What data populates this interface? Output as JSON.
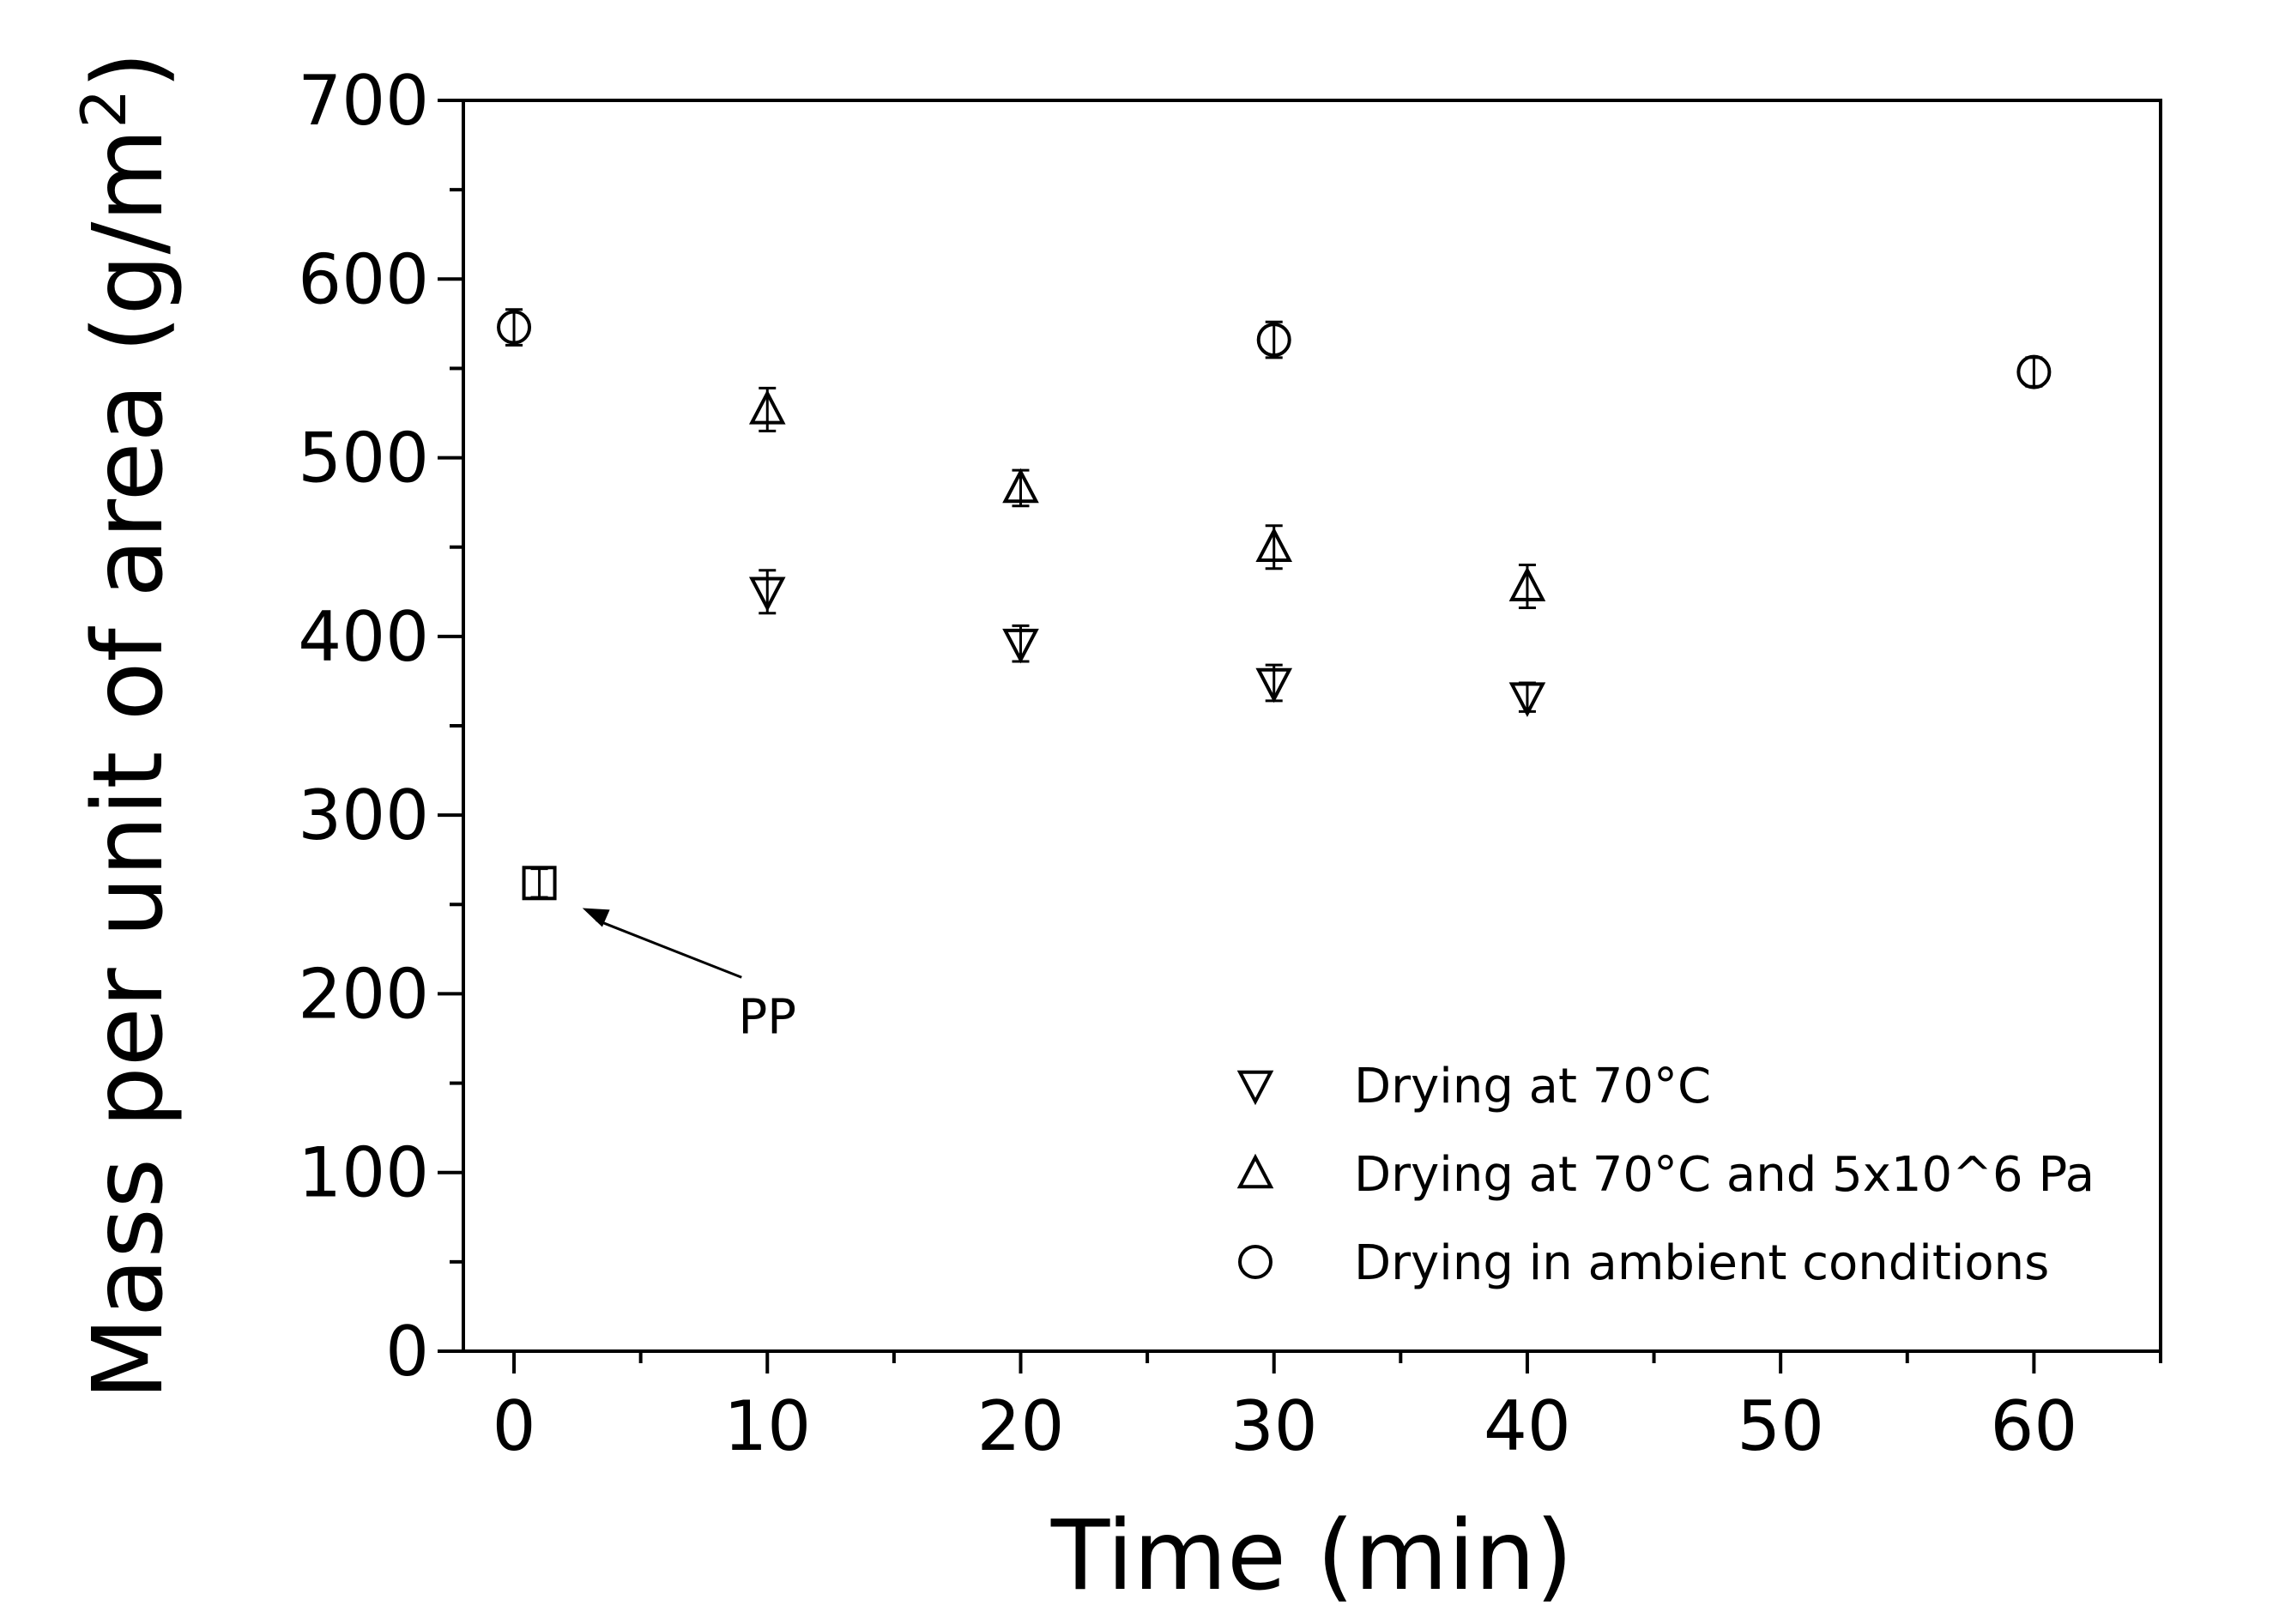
{
  "chart_data": {
    "type": "scatter",
    "title": "",
    "xlabel": "Time (min)",
    "ylabel": "Mass per unit of area (g/m",
    "ylabel_superscript": "2",
    "ylabel_suffix": ")",
    "xlim": [
      -2,
      65
    ],
    "ylim": [
      0,
      700
    ],
    "xticks": [
      0,
      10,
      20,
      30,
      40,
      50,
      60
    ],
    "yticks": [
      0,
      100,
      200,
      300,
      400,
      500,
      600,
      700
    ],
    "grid": false,
    "legend_position": "bottom-right",
    "series": [
      {
        "name": "Drying at 70°C",
        "marker": "triangle-down",
        "points": [
          {
            "x": 10,
            "y": 425,
            "err": 12
          },
          {
            "x": 20,
            "y": 396,
            "err": 10
          },
          {
            "x": 30,
            "y": 374,
            "err": 10
          },
          {
            "x": 40,
            "y": 366,
            "err": 8
          }
        ]
      },
      {
        "name": "Drying at 70°C and 5x10^6 Pa",
        "marker": "triangle-up",
        "points": [
          {
            "x": 10,
            "y": 527,
            "err": 12
          },
          {
            "x": 20,
            "y": 483,
            "err": 10
          },
          {
            "x": 30,
            "y": 450,
            "err": 12
          },
          {
            "x": 40,
            "y": 428,
            "err": 12
          }
        ]
      },
      {
        "name": "Drying in ambient conditions",
        "marker": "circle",
        "points": [
          {
            "x": 0,
            "y": 573,
            "err": 10
          },
          {
            "x": 30,
            "y": 566,
            "err": 10
          },
          {
            "x": 60,
            "y": 548,
            "err": 8
          }
        ]
      },
      {
        "name": "",
        "marker": "square",
        "points": [
          {
            "x": 1,
            "y": 262,
            "err": 8
          }
        ]
      }
    ],
    "annotations": [
      {
        "text": "PP",
        "x": 10,
        "y": 178,
        "arrow_to": {
          "x": 2.7,
          "y": 248
        }
      }
    ]
  }
}
